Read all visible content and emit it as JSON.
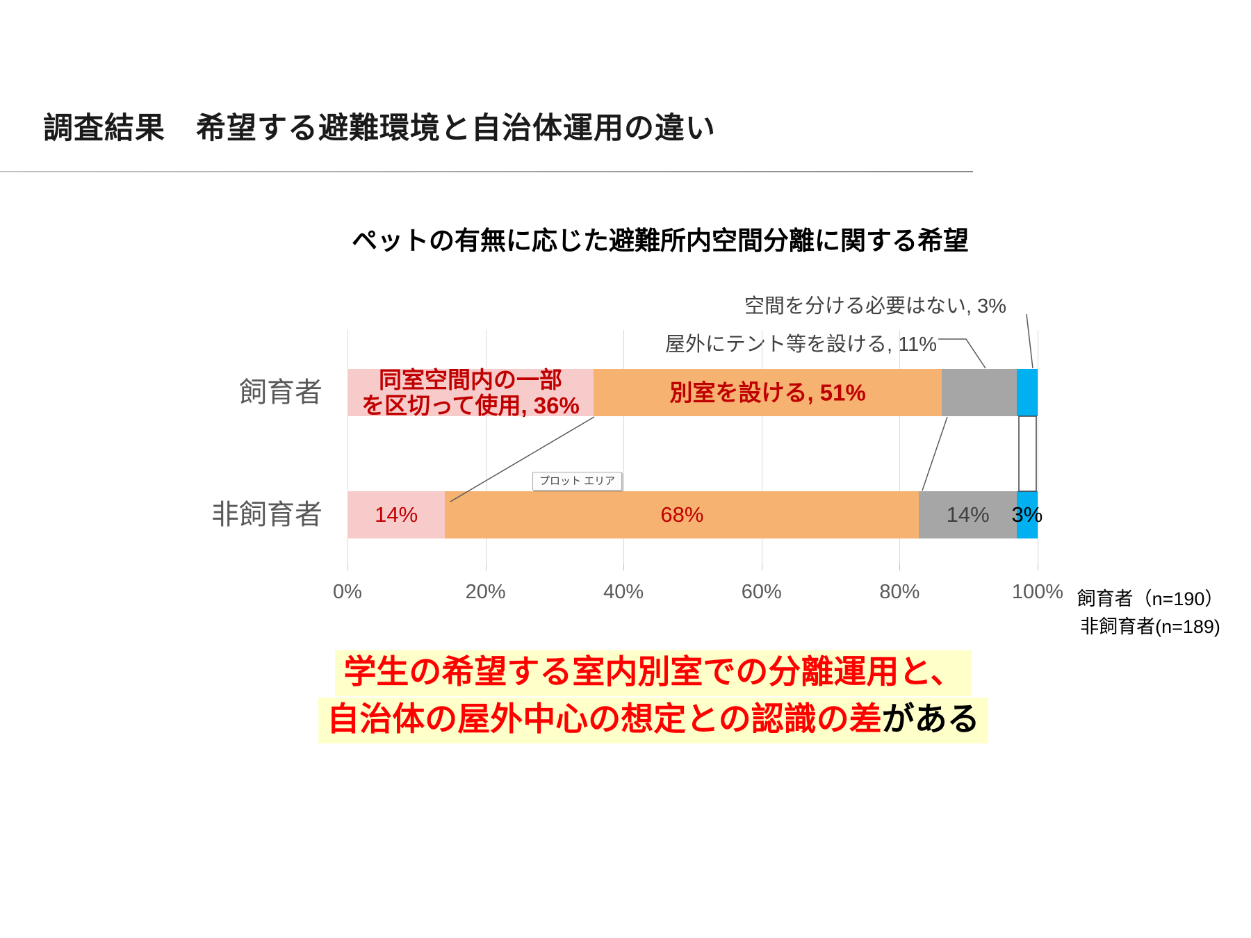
{
  "slide": {
    "title": "調査結果　希望する避難環境と自治体運用の違い"
  },
  "chart_data": {
    "type": "bar",
    "stacked": true,
    "orientation": "horizontal",
    "title": "ペットの有無に応じた避難所内空間分離に関する希望",
    "categories": [
      "飼育者",
      "非飼育者"
    ],
    "series": [
      {
        "name": "同室空間内の一部を区切って使用",
        "color": "#F8CBCB",
        "values": [
          36,
          14
        ],
        "labels": [
          "同室空間内の一部\nを区切って使用, 36%",
          "14%"
        ],
        "label_colors": [
          "#C00000",
          "#C00000"
        ]
      },
      {
        "name": "別室を設ける",
        "color": "#F5B271",
        "values": [
          51,
          68
        ],
        "labels": [
          "別室を設ける, 51%",
          "68%"
        ],
        "label_colors": [
          "#C00000",
          "#C00000"
        ]
      },
      {
        "name": "屋外にテント等を設ける",
        "color": "#A6A6A6",
        "values": [
          11,
          14
        ],
        "labels": [
          "",
          "14%"
        ],
        "label_colors": [
          "",
          "#404040"
        ]
      },
      {
        "name": "空間を分ける必要はない",
        "color": "#00B0F0",
        "values": [
          3,
          3
        ],
        "labels": [
          "",
          "3%"
        ],
        "label_colors": [
          "",
          "#000000"
        ]
      }
    ],
    "x_ticks": [
      "0%",
      "20%",
      "40%",
      "60%",
      "80%",
      "100%"
    ],
    "xlim": [
      0,
      100
    ],
    "grid": true,
    "legend_position": "none",
    "annotations": [
      {
        "text": "空間を分ける必要はない, 3%",
        "series": "空間を分ける必要はない"
      },
      {
        "text": "屋外にテント等を設ける, 11%",
        "series": "屋外にテント等を設ける"
      }
    ],
    "tooltip": "プロット エリア"
  },
  "sample_note": {
    "line1": "飼育者（n=190）",
    "line2": "非飼育者(n=189)"
  },
  "conclusion": {
    "line1": "学生の希望する室内別室での分離運用と、",
    "line2_highlight": "自治体の屋外中心の想定との認識の差",
    "line2_suffix": "がある"
  },
  "colors": {
    "bar_label_red": "#C00000",
    "emphasis_red": "#FF0000",
    "highlight_yellow": "#FFFFC9",
    "axis_text": "#595959",
    "gridline": "#D9D9D9"
  }
}
